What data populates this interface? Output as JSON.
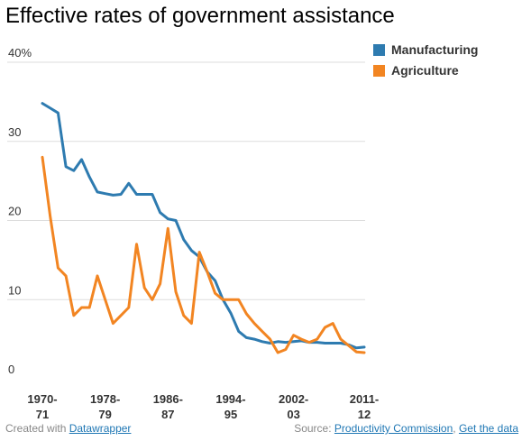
{
  "title": "Effective rates of government assistance",
  "footer": {
    "created_prefix": "Created with",
    "created_link": "Datawrapper",
    "source_prefix": "Source:",
    "source_link": "Productivity Commission",
    "separator": ",",
    "data_link": "Get the data"
  },
  "colors": {
    "manufacturing": "#2e7bb0",
    "agriculture": "#f28522"
  },
  "chart_data": {
    "type": "line",
    "title": "Effective rates of government assistance",
    "xlabel": "",
    "ylabel": "",
    "ylim": [
      0,
      40
    ],
    "yticks": [
      "40%",
      "30",
      "20",
      "10",
      "0"
    ],
    "xticks": [
      {
        "l1": "1970-",
        "l2": "71"
      },
      {
        "l1": "1978-",
        "l2": "79"
      },
      {
        "l1": "1986-",
        "l2": "87"
      },
      {
        "l1": "1994-",
        "l2": "95"
      },
      {
        "l1": "2002-",
        "l2": "03"
      },
      {
        "l1": "2011-",
        "l2": "12"
      }
    ],
    "x_start": 1970,
    "x_end": 2011,
    "grid": true,
    "legend": "top-right",
    "series": [
      {
        "name": "Manufacturing",
        "color": "#2e7bb0",
        "x": [
          1970,
          1971,
          1972,
          1973,
          1974,
          1975,
          1976,
          1977,
          1978,
          1979,
          1980,
          1981,
          1982,
          1983,
          1984,
          1985,
          1986,
          1987,
          1988,
          1989,
          1990,
          1991,
          1992,
          1993,
          1994,
          1995,
          1996,
          1997,
          1998,
          1999,
          2000,
          2001,
          2002,
          2003,
          2004,
          2005,
          2006,
          2007,
          2008,
          2009,
          2010,
          2011
        ],
        "values": [
          34.8,
          34.2,
          33.6,
          26.8,
          26.3,
          27.7,
          25.5,
          23.6,
          23.4,
          23.2,
          23.3,
          24.7,
          23.3,
          23.3,
          23.3,
          21.0,
          20.2,
          20.0,
          17.6,
          16.2,
          15.4,
          13.5,
          12.4,
          10.0,
          8.3,
          6.0,
          5.2,
          5.0,
          4.7,
          4.5,
          4.7,
          4.6,
          4.7,
          4.8,
          4.6,
          4.6,
          4.5,
          4.5,
          4.5,
          4.3,
          3.9,
          4.0
        ]
      },
      {
        "name": "Agriculture",
        "color": "#f28522",
        "x": [
          1970,
          1971,
          1972,
          1973,
          1974,
          1975,
          1976,
          1977,
          1978,
          1979,
          1980,
          1981,
          1982,
          1983,
          1984,
          1985,
          1986,
          1987,
          1988,
          1989,
          1990,
          1991,
          1992,
          1993,
          1994,
          1995,
          1996,
          1997,
          1998,
          1999,
          2000,
          2001,
          2002,
          2003,
          2004,
          2005,
          2006,
          2007,
          2008,
          2009,
          2010,
          2011
        ],
        "values": [
          28.0,
          20.5,
          14.0,
          13.0,
          8.0,
          9.0,
          9.0,
          13.0,
          10.0,
          7.0,
          8.0,
          9.0,
          17.0,
          11.5,
          10.0,
          12.0,
          19.0,
          11.0,
          8.0,
          7.0,
          16.0,
          13.5,
          10.8,
          10.0,
          10.0,
          10.0,
          8.2,
          7.0,
          6.0,
          5.0,
          3.3,
          3.7,
          5.5,
          5.0,
          4.6,
          5.0,
          6.5,
          7.0,
          5.0,
          4.2,
          3.4,
          3.3
        ]
      }
    ]
  }
}
